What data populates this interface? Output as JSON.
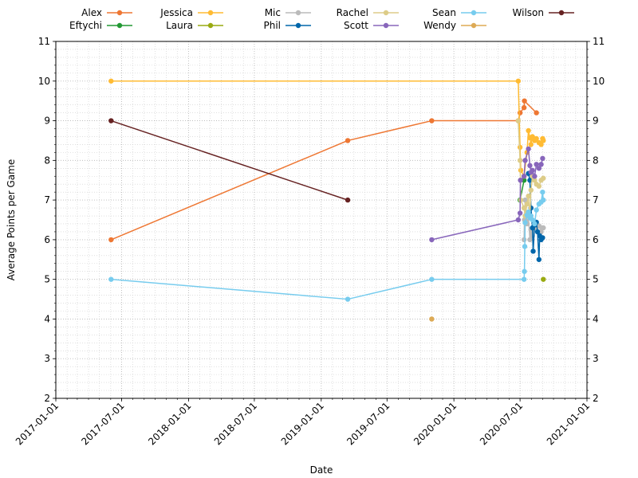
{
  "chart_data": {
    "type": "line",
    "xlabel": "Date",
    "ylabel": "Average Points per Game",
    "xlim": [
      "2017-01-01",
      "2021-01-01"
    ],
    "ylim": [
      2,
      11
    ],
    "x_ticks": [
      "2017-01-01",
      "2017-07-01",
      "2018-01-01",
      "2018-07-01",
      "2019-01-01",
      "2019-07-01",
      "2020-01-01",
      "2020-07-01",
      "2021-01-01"
    ],
    "y_ticks": [
      2,
      3,
      4,
      5,
      6,
      7,
      8,
      9,
      10,
      11
    ],
    "grid": true,
    "legend_position": "top",
    "series": [
      {
        "name": "Alex",
        "color": "#ee7733",
        "points": [
          [
            "2017-06-02",
            6.0
          ],
          [
            "2019-03-15",
            8.5
          ],
          [
            "2019-11-01",
            9.0
          ],
          [
            "2020-06-26",
            9.0
          ],
          [
            "2020-07-01",
            9.2
          ],
          [
            "2020-07-12",
            9.33
          ],
          [
            "2020-07-13",
            9.5
          ],
          [
            "2020-08-15",
            9.2
          ]
        ]
      },
      {
        "name": "Eftychi",
        "color": "#229933",
        "points": [
          [
            "2020-07-01",
            7.0
          ],
          [
            "2020-07-12",
            7.5
          ]
        ]
      },
      {
        "name": "Jessica",
        "color": "#ffbb33",
        "points": [
          [
            "2017-06-02",
            10.0
          ],
          [
            "2020-06-26",
            10.0
          ],
          [
            "2020-07-01",
            8.33
          ],
          [
            "2020-07-03",
            7.75
          ],
          [
            "2020-07-12",
            7.6
          ],
          [
            "2020-07-20",
            8.2
          ],
          [
            "2020-07-24",
            8.75
          ],
          [
            "2020-07-28",
            8.57
          ],
          [
            "2020-07-31",
            8.4
          ],
          [
            "2020-08-04",
            8.6
          ],
          [
            "2020-08-10",
            8.5
          ],
          [
            "2020-08-15",
            8.55
          ],
          [
            "2020-08-22",
            8.45
          ],
          [
            "2020-08-28",
            8.4
          ],
          [
            "2020-09-01",
            8.55
          ],
          [
            "2020-09-03",
            8.5
          ]
        ]
      },
      {
        "name": "Laura",
        "color": "#99aa11",
        "points": [
          [
            "2020-09-03",
            5.0
          ]
        ]
      },
      {
        "name": "Mic",
        "color": "#bbbbbb",
        "points": [
          [
            "2020-07-12",
            6.0
          ],
          [
            "2020-07-13",
            6.5
          ],
          [
            "2020-07-15",
            7.0
          ],
          [
            "2020-07-20",
            6.4
          ],
          [
            "2020-07-24",
            6.6
          ],
          [
            "2020-07-28",
            6.0
          ],
          [
            "2020-07-31",
            6.25
          ],
          [
            "2020-08-04",
            6.1
          ],
          [
            "2020-08-10",
            6.45
          ],
          [
            "2020-08-15",
            6.3
          ],
          [
            "2020-08-22",
            6.35
          ],
          [
            "2020-08-28",
            6.2
          ],
          [
            "2020-09-01",
            6.3
          ],
          [
            "2020-09-03",
            6.3
          ]
        ]
      },
      {
        "name": "Phil",
        "color": "#0066aa",
        "points": [
          [
            "2020-07-24",
            7.67
          ],
          [
            "2020-07-28",
            7.5
          ],
          [
            "2020-07-31",
            6.8
          ],
          [
            "2020-08-04",
            6.3
          ],
          [
            "2020-08-06",
            5.71
          ],
          [
            "2020-08-10",
            6.37
          ],
          [
            "2020-08-15",
            6.44
          ],
          [
            "2020-08-18",
            6.2
          ],
          [
            "2020-08-22",
            5.5
          ],
          [
            "2020-08-24",
            6.1
          ],
          [
            "2020-08-28",
            6.0
          ],
          [
            "2020-09-01",
            6.05
          ]
        ]
      },
      {
        "name": "Rachel",
        "color": "#ddcc88",
        "points": [
          [
            "2020-06-26",
            9.0
          ],
          [
            "2020-07-01",
            8.0
          ],
          [
            "2020-07-03",
            7.0
          ],
          [
            "2020-07-12",
            6.8
          ],
          [
            "2020-07-15",
            6.6
          ],
          [
            "2020-07-20",
            6.9
          ],
          [
            "2020-07-24",
            7.1
          ],
          [
            "2020-07-28",
            6.6
          ],
          [
            "2020-07-31",
            7.25
          ],
          [
            "2020-08-04",
            7.6
          ],
          [
            "2020-08-10",
            7.5
          ],
          [
            "2020-08-15",
            7.4
          ],
          [
            "2020-08-22",
            7.35
          ],
          [
            "2020-08-28",
            7.5
          ],
          [
            "2020-09-03",
            7.55
          ]
        ]
      },
      {
        "name": "Scott",
        "color": "#8866bb",
        "points": [
          [
            "2019-11-01",
            6.0
          ],
          [
            "2020-06-26",
            6.5
          ],
          [
            "2020-07-01",
            6.67
          ],
          [
            "2020-07-02",
            7.5
          ],
          [
            "2020-07-12",
            7.6
          ],
          [
            "2020-07-15",
            8.0
          ],
          [
            "2020-07-24",
            8.29
          ],
          [
            "2020-07-28",
            7.87
          ],
          [
            "2020-07-31",
            7.7
          ],
          [
            "2020-08-04",
            7.75
          ],
          [
            "2020-08-10",
            7.6
          ],
          [
            "2020-08-15",
            7.9
          ],
          [
            "2020-08-22",
            7.8
          ],
          [
            "2020-08-28",
            7.9
          ],
          [
            "2020-09-01",
            8.05
          ]
        ]
      },
      {
        "name": "Sean",
        "color": "#77ccee",
        "points": [
          [
            "2017-06-02",
            5.0
          ],
          [
            "2019-03-15",
            4.5
          ],
          [
            "2019-11-01",
            5.0
          ],
          [
            "2020-07-12",
            5.0
          ],
          [
            "2020-07-13",
            5.2
          ],
          [
            "2020-07-14",
            5.83
          ],
          [
            "2020-07-15",
            6.43
          ],
          [
            "2020-07-20",
            6.62
          ],
          [
            "2020-07-24",
            6.7
          ],
          [
            "2020-07-28",
            6.55
          ],
          [
            "2020-07-31",
            6.6
          ],
          [
            "2020-08-04",
            6.5
          ],
          [
            "2020-08-10",
            6.4
          ],
          [
            "2020-08-15",
            6.75
          ],
          [
            "2020-08-22",
            6.9
          ],
          [
            "2020-08-28",
            6.95
          ],
          [
            "2020-09-01",
            7.2
          ],
          [
            "2020-09-03",
            7.0
          ]
        ]
      },
      {
        "name": "Wendy",
        "color": "#ddaa55",
        "points": [
          [
            "2019-11-01",
            4.0
          ]
        ]
      },
      {
        "name": "Wilson",
        "color": "#662222",
        "points": [
          [
            "2017-06-02",
            9.0
          ],
          [
            "2019-03-15",
            7.0
          ]
        ]
      }
    ]
  }
}
